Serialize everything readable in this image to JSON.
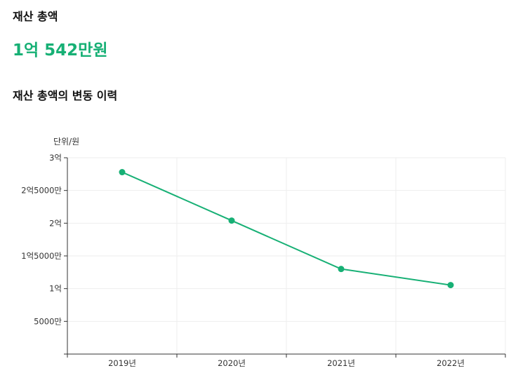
{
  "header": {
    "asset_title": "재산 총액",
    "asset_total": "1억 542만원",
    "history_title": "재산 총액의 변동 이력"
  },
  "colors": {
    "accent": "#17b075",
    "grid": "#eeeeee",
    "axis": "#333333"
  },
  "chart_data": {
    "type": "line",
    "unit_label": "단위/원",
    "categories": [
      "2019년",
      "2020년",
      "2021년",
      "2022년"
    ],
    "series": [
      {
        "values": [
          278000000,
          204000000,
          130000000,
          105420000
        ]
      }
    ],
    "ylim": [
      0,
      300000000
    ],
    "yticks": [
      {
        "value": 0,
        "label": ""
      },
      {
        "value": 50000000,
        "label": "5000만"
      },
      {
        "value": 100000000,
        "label": "1억"
      },
      {
        "value": 150000000,
        "label": "1억5000만"
      },
      {
        "value": 200000000,
        "label": "2억"
      },
      {
        "value": 250000000,
        "label": "2억5000만"
      },
      {
        "value": 300000000,
        "label": "3억"
      }
    ],
    "grid": true
  }
}
